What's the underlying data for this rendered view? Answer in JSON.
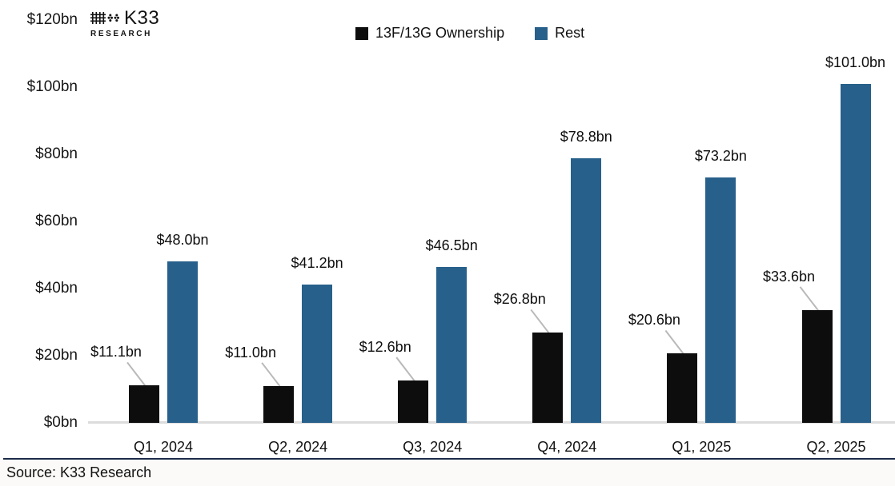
{
  "logo": {
    "name": "K33",
    "sub": "RESEARCH"
  },
  "legend": {
    "items": [
      {
        "label": "13F/13G Ownership",
        "color": "#0d0d0d"
      },
      {
        "label": "Rest",
        "color": "#27608a"
      }
    ]
  },
  "footer": {
    "source": "Source: K33 Research"
  },
  "chart_data": {
    "type": "bar",
    "categories": [
      "Q1, 2024",
      "Q2, 2024",
      "Q3, 2024",
      "Q4, 2024",
      "Q1, 2025",
      "Q2, 2025"
    ],
    "series": [
      {
        "name": "13F/13G Ownership",
        "color": "#0d0d0d",
        "values": [
          11.1,
          11.0,
          12.6,
          26.8,
          20.6,
          33.6
        ],
        "labels": [
          "$11.1bn",
          "$11.0bn",
          "$12.6bn",
          "$26.8bn",
          "$20.6bn",
          "$33.6bn"
        ]
      },
      {
        "name": "Rest",
        "color": "#27608a",
        "values": [
          48.0,
          41.2,
          46.5,
          78.8,
          73.2,
          101.0
        ],
        "labels": [
          "$48.0bn",
          "$41.2bn",
          "$46.5bn",
          "$78.8bn",
          "$73.2bn",
          "$101.0bn"
        ]
      }
    ],
    "ylabel": "",
    "xlabel": "",
    "ylim": [
      0,
      120
    ],
    "ytick_step": 20,
    "ytick_labels": [
      "$0bn",
      "$20bn",
      "$40bn",
      "$60bn",
      "$80bn",
      "$100bn",
      "$120bn"
    ],
    "grid": false,
    "legend_position": "top-center",
    "leader_line_color": "#b9b9b9",
    "baseline_color": "#dcdcdc"
  }
}
